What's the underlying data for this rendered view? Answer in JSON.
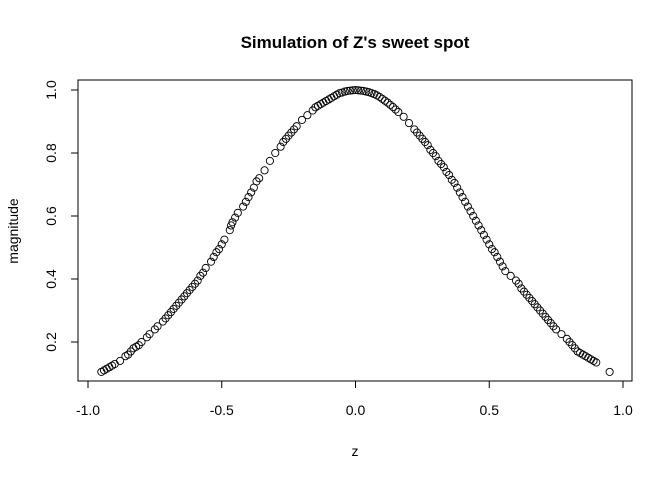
{
  "chart_data": {
    "type": "scatter",
    "title": "Simulation of Z's sweet spot",
    "xlabel": "z",
    "ylabel": "magnitude",
    "xlim": [
      -1.0,
      1.0
    ],
    "ylim": [
      0.1,
      1.0
    ],
    "xticks": [
      -1.0,
      -0.5,
      0.0,
      0.5,
      1.0
    ],
    "xtick_labels": [
      "-1.0",
      "-0.5",
      "0.0",
      "0.5",
      "1.0"
    ],
    "yticks": [
      0.2,
      0.4,
      0.6,
      0.8,
      1.0
    ],
    "ytick_labels": [
      "0.2",
      "0.4",
      "0.6",
      "0.8",
      "1.0"
    ],
    "grid": false,
    "marker": "open-circle",
    "series": [
      {
        "points": [
          [
            -0.95,
            0.105
          ],
          [
            -0.94,
            0.11
          ],
          [
            -0.93,
            0.115
          ],
          [
            -0.92,
            0.12
          ],
          [
            -0.91,
            0.125
          ],
          [
            -0.9,
            0.13
          ],
          [
            -0.88,
            0.14
          ],
          [
            -0.86,
            0.155
          ],
          [
            -0.85,
            0.16
          ],
          [
            -0.84,
            0.17
          ],
          [
            -0.83,
            0.18
          ],
          [
            -0.82,
            0.185
          ],
          [
            -0.81,
            0.19
          ],
          [
            -0.8,
            0.2
          ],
          [
            -0.78,
            0.215
          ],
          [
            -0.77,
            0.225
          ],
          [
            -0.75,
            0.24
          ],
          [
            -0.74,
            0.25
          ],
          [
            -0.72,
            0.265
          ],
          [
            -0.71,
            0.275
          ],
          [
            -0.7,
            0.285
          ],
          [
            -0.69,
            0.295
          ],
          [
            -0.68,
            0.305
          ],
          [
            -0.67,
            0.315
          ],
          [
            -0.66,
            0.325
          ],
          [
            -0.65,
            0.335
          ],
          [
            -0.64,
            0.345
          ],
          [
            -0.63,
            0.355
          ],
          [
            -0.62,
            0.365
          ],
          [
            -0.61,
            0.375
          ],
          [
            -0.6,
            0.385
          ],
          [
            -0.59,
            0.395
          ],
          [
            -0.58,
            0.41
          ],
          [
            -0.57,
            0.42
          ],
          [
            -0.56,
            0.435
          ],
          [
            -0.54,
            0.455
          ],
          [
            -0.53,
            0.47
          ],
          [
            -0.52,
            0.485
          ],
          [
            -0.51,
            0.495
          ],
          [
            -0.5,
            0.51
          ],
          [
            -0.49,
            0.525
          ],
          [
            -0.47,
            0.555
          ],
          [
            -0.465,
            0.57
          ],
          [
            -0.46,
            0.58
          ],
          [
            -0.45,
            0.595
          ],
          [
            -0.44,
            0.61
          ],
          [
            -0.42,
            0.63
          ],
          [
            -0.41,
            0.645
          ],
          [
            -0.4,
            0.66
          ],
          [
            -0.39,
            0.675
          ],
          [
            -0.38,
            0.69
          ],
          [
            -0.37,
            0.71
          ],
          [
            -0.36,
            0.72
          ],
          [
            -0.34,
            0.745
          ],
          [
            -0.32,
            0.775
          ],
          [
            -0.3,
            0.8
          ],
          [
            -0.28,
            0.82
          ],
          [
            -0.27,
            0.835
          ],
          [
            -0.26,
            0.845
          ],
          [
            -0.25,
            0.855
          ],
          [
            -0.24,
            0.865
          ],
          [
            -0.23,
            0.875
          ],
          [
            -0.22,
            0.885
          ],
          [
            -0.2,
            0.905
          ],
          [
            -0.18,
            0.92
          ],
          [
            -0.16,
            0.935
          ],
          [
            -0.15,
            0.945
          ],
          [
            -0.14,
            0.95
          ],
          [
            -0.13,
            0.955
          ],
          [
            -0.12,
            0.96
          ],
          [
            -0.11,
            0.965
          ],
          [
            -0.1,
            0.97
          ],
          [
            -0.09,
            0.975
          ],
          [
            -0.08,
            0.98
          ],
          [
            -0.07,
            0.985
          ],
          [
            -0.06,
            0.99
          ],
          [
            -0.05,
            0.992
          ],
          [
            -0.04,
            0.995
          ],
          [
            -0.03,
            0.997
          ],
          [
            -0.02,
            0.998
          ],
          [
            -0.01,
            0.999
          ],
          [
            0.0,
            1.0
          ],
          [
            0.01,
            0.999
          ],
          [
            0.02,
            0.998
          ],
          [
            0.03,
            0.997
          ],
          [
            0.04,
            0.995
          ],
          [
            0.05,
            0.993
          ],
          [
            0.06,
            0.99
          ],
          [
            0.07,
            0.987
          ],
          [
            0.08,
            0.983
          ],
          [
            0.09,
            0.978
          ],
          [
            0.1,
            0.972
          ],
          [
            0.11,
            0.966
          ],
          [
            0.12,
            0.96
          ],
          [
            0.13,
            0.953
          ],
          [
            0.14,
            0.946
          ],
          [
            0.15,
            0.938
          ],
          [
            0.16,
            0.93
          ],
          [
            0.18,
            0.915
          ],
          [
            0.2,
            0.895
          ],
          [
            0.22,
            0.875
          ],
          [
            0.23,
            0.865
          ],
          [
            0.24,
            0.855
          ],
          [
            0.25,
            0.845
          ],
          [
            0.26,
            0.835
          ],
          [
            0.27,
            0.825
          ],
          [
            0.28,
            0.81
          ],
          [
            0.29,
            0.8
          ],
          [
            0.3,
            0.79
          ],
          [
            0.31,
            0.775
          ],
          [
            0.32,
            0.765
          ],
          [
            0.33,
            0.755
          ],
          [
            0.34,
            0.74
          ],
          [
            0.35,
            0.73
          ],
          [
            0.36,
            0.715
          ],
          [
            0.37,
            0.705
          ],
          [
            0.38,
            0.69
          ],
          [
            0.39,
            0.675
          ],
          [
            0.4,
            0.66
          ],
          [
            0.41,
            0.645
          ],
          [
            0.42,
            0.63
          ],
          [
            0.43,
            0.615
          ],
          [
            0.44,
            0.6
          ],
          [
            0.45,
            0.585
          ],
          [
            0.46,
            0.57
          ],
          [
            0.47,
            0.555
          ],
          [
            0.48,
            0.54
          ],
          [
            0.49,
            0.525
          ],
          [
            0.5,
            0.51
          ],
          [
            0.51,
            0.495
          ],
          [
            0.52,
            0.485
          ],
          [
            0.53,
            0.47
          ],
          [
            0.54,
            0.455
          ],
          [
            0.55,
            0.44
          ],
          [
            0.56,
            0.425
          ],
          [
            0.58,
            0.41
          ],
          [
            0.6,
            0.395
          ],
          [
            0.61,
            0.385
          ],
          [
            0.62,
            0.37
          ],
          [
            0.63,
            0.36
          ],
          [
            0.64,
            0.35
          ],
          [
            0.65,
            0.34
          ],
          [
            0.66,
            0.33
          ],
          [
            0.67,
            0.32
          ],
          [
            0.68,
            0.31
          ],
          [
            0.69,
            0.3
          ],
          [
            0.7,
            0.29
          ],
          [
            0.71,
            0.28
          ],
          [
            0.72,
            0.27
          ],
          [
            0.73,
            0.26
          ],
          [
            0.74,
            0.25
          ],
          [
            0.75,
            0.24
          ],
          [
            0.77,
            0.225
          ],
          [
            0.79,
            0.21
          ],
          [
            0.8,
            0.2
          ],
          [
            0.81,
            0.19
          ],
          [
            0.82,
            0.18
          ],
          [
            0.83,
            0.17
          ],
          [
            0.84,
            0.165
          ],
          [
            0.85,
            0.16
          ],
          [
            0.86,
            0.155
          ],
          [
            0.87,
            0.15
          ],
          [
            0.88,
            0.145
          ],
          [
            0.89,
            0.14
          ],
          [
            0.9,
            0.135
          ],
          [
            0.95,
            0.105
          ]
        ]
      }
    ]
  }
}
